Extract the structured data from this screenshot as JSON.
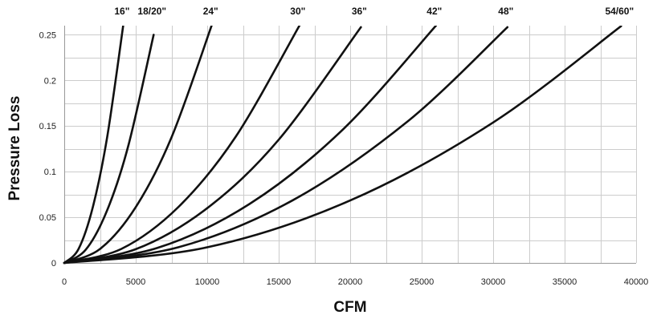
{
  "chart_data": {
    "type": "line",
    "xlabel": "CFM",
    "ylabel": "Pressure Loss",
    "xlim": [
      0,
      40000
    ],
    "ylim": [
      0,
      0.26
    ],
    "x_ticks": [
      "0",
      "5000",
      "10000",
      "15000",
      "20000",
      "25000",
      "30000",
      "35000",
      "40000"
    ],
    "y_ticks": [
      "0",
      "0.05",
      "0.1",
      "0.15",
      "0.2",
      "0.25"
    ],
    "grid": true,
    "legend": "labels at curve ends",
    "line_color": "#111111",
    "series": [
      {
        "name": "16\"",
        "points": [
          [
            0,
            0
          ],
          [
            1000,
            0.0153
          ],
          [
            2000,
            0.0612
          ],
          [
            3000,
            0.1376
          ],
          [
            4150,
            0.2633
          ]
        ]
      },
      {
        "name": "18/20\"",
        "points": [
          [
            0,
            0
          ],
          [
            1500,
            0.0144
          ],
          [
            3000,
            0.0576
          ],
          [
            4500,
            0.1296
          ],
          [
            6250,
            0.25
          ]
        ]
      },
      {
        "name": "24\"",
        "points": [
          [
            0,
            0
          ],
          [
            2500,
            0.0153
          ],
          [
            5000,
            0.0611
          ],
          [
            7500,
            0.1375
          ],
          [
            10350,
            0.2619
          ]
        ]
      },
      {
        "name": "30\"",
        "points": [
          [
            0,
            0
          ],
          [
            4000,
            0.0154
          ],
          [
            8000,
            0.0615
          ],
          [
            12000,
            0.1384
          ],
          [
            16450,
            0.26
          ]
        ]
      },
      {
        "name": "36\"",
        "points": [
          [
            0,
            0
          ],
          [
            5000,
            0.015
          ],
          [
            10000,
            0.06
          ],
          [
            15000,
            0.135
          ],
          [
            20750,
            0.2583
          ]
        ]
      },
      {
        "name": "42\"",
        "points": [
          [
            0,
            0
          ],
          [
            6500,
            0.0163
          ],
          [
            13000,
            0.065
          ],
          [
            19500,
            0.1463
          ],
          [
            26000,
            0.26
          ]
        ]
      },
      {
        "name": "48\"",
        "points": [
          [
            0,
            0
          ],
          [
            8000,
            0.0172
          ],
          [
            16000,
            0.0688
          ],
          [
            24000,
            0.1548
          ],
          [
            31000,
            0.2583
          ]
        ]
      },
      {
        "name": "54/60\"",
        "points": [
          [
            0,
            0
          ],
          [
            10000,
            0.0171
          ],
          [
            20000,
            0.0684
          ],
          [
            30000,
            0.1539
          ],
          [
            38950,
            0.2595
          ]
        ]
      }
    ]
  }
}
